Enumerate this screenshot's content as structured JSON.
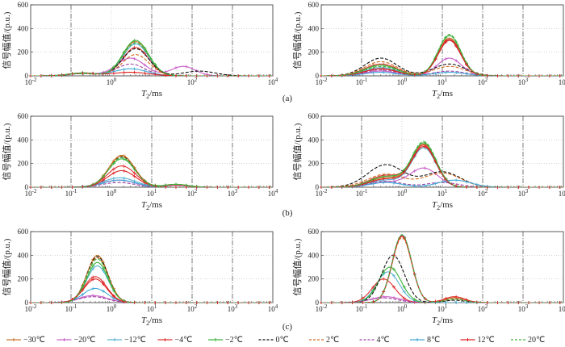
{
  "figure": {
    "rows": [
      {
        "label": "(a)"
      },
      {
        "label": "(b)"
      },
      {
        "label": "(c)"
      }
    ]
  },
  "legend": [
    {
      "name": "−30℃",
      "color": "#c8782d",
      "marker": "+"
    },
    {
      "name": "−20℃",
      "color": "#c860c8",
      "marker": "+"
    },
    {
      "name": "−12℃",
      "color": "#5ab4d2",
      "marker": "+"
    },
    {
      "name": "−4℃",
      "color": "#e03030",
      "marker": "+"
    },
    {
      "name": "−2℃",
      "color": "#3cb43c",
      "marker": "+"
    },
    {
      "name": "0℃",
      "color": "#111111",
      "marker": "dash"
    },
    {
      "name": "2℃",
      "color": "#d2691e",
      "marker": "dash"
    },
    {
      "name": "4℃",
      "color": "#a040a0",
      "marker": "dash"
    },
    {
      "name": "8℃",
      "color": "#40a8d8",
      "marker": "+"
    },
    {
      "name": "12℃",
      "color": "#e02020",
      "marker": "+"
    },
    {
      "name": "20℃",
      "color": "#40b040",
      "marker": "dash"
    }
  ],
  "chart_data": [
    {
      "type": "line",
      "id": "a-left",
      "xlabel": "T2/ms",
      "ylabel": "信号幅值/(p.u.)",
      "xscale": "log",
      "xlim": [
        0.01,
        10000
      ],
      "ylim": [
        0,
        600
      ],
      "xticks": [
        "10-2",
        "100",
        "102",
        "104"
      ],
      "yticks": [
        0,
        200,
        400,
        600
      ],
      "series": [
        {
          "name": "−30℃",
          "peaks": [
            [
              0.2,
              25,
              0.35
            ],
            [
              4.0,
              290,
              0.32
            ]
          ]
        },
        {
          "name": "−20℃",
          "peaks": [
            [
              0.2,
              20,
              0.35
            ],
            [
              3.0,
              150,
              0.35
            ],
            [
              60,
              80,
              0.3
            ]
          ]
        },
        {
          "name": "−12℃",
          "peaks": [
            [
              0.2,
              25,
              0.35
            ],
            [
              4.0,
              270,
              0.32
            ]
          ]
        },
        {
          "name": "−4℃",
          "peaks": [
            [
              0.2,
              25,
              0.35
            ],
            [
              4.0,
              240,
              0.32
            ]
          ]
        },
        {
          "name": "−2℃",
          "peaks": [
            [
              0.2,
              25,
              0.35
            ],
            [
              4.0,
              300,
              0.32
            ]
          ]
        },
        {
          "name": "0℃",
          "peaks": [
            [
              0.2,
              20,
              0.35
            ],
            [
              4.0,
              230,
              0.33
            ],
            [
              150,
              40,
              0.4
            ]
          ]
        },
        {
          "name": "2℃",
          "peaks": [
            [
              0.2,
              20,
              0.35
            ],
            [
              4.0,
              180,
              0.33
            ]
          ]
        },
        {
          "name": "4℃",
          "peaks": [
            [
              0.2,
              20,
              0.35
            ],
            [
              3.0,
              100,
              0.35
            ]
          ]
        },
        {
          "name": "8℃",
          "peaks": [
            [
              0.2,
              20,
              0.35
            ],
            [
              3.0,
              60,
              0.4
            ]
          ]
        },
        {
          "name": "12℃",
          "peaks": [
            [
              0.2,
              20,
              0.35
            ],
            [
              3.0,
              30,
              0.45
            ]
          ]
        },
        {
          "name": "20℃",
          "peaks": [
            [
              0.2,
              20,
              0.35
            ],
            [
              4.0,
              280,
              0.32
            ]
          ]
        }
      ]
    },
    {
      "type": "line",
      "id": "a-right",
      "xlabel": "T2/ms",
      "ylabel": "信号幅值/(p.u.)",
      "xscale": "log",
      "xlim": [
        0.01,
        10000
      ],
      "ylim": [
        0,
        600
      ],
      "xticks": [
        "10-2",
        "10-1",
        "100",
        "101",
        "102",
        "103",
        "104"
      ],
      "yticks": [
        0,
        200,
        400,
        600
      ],
      "series": [
        {
          "name": "−30℃",
          "peaks": [
            [
              0.3,
              60,
              0.4
            ],
            [
              15,
              320,
              0.28
            ]
          ]
        },
        {
          "name": "−20℃",
          "peaks": [
            [
              0.3,
              40,
              0.4
            ],
            [
              15,
              150,
              0.3
            ]
          ]
        },
        {
          "name": "−12℃",
          "peaks": [
            [
              0.3,
              70,
              0.4
            ],
            [
              15,
              300,
              0.28
            ]
          ]
        },
        {
          "name": "−4℃",
          "peaks": [
            [
              0.3,
              100,
              0.4
            ],
            [
              15,
              310,
              0.28
            ]
          ]
        },
        {
          "name": "−2℃",
          "peaks": [
            [
              0.3,
              90,
              0.4
            ],
            [
              15,
              340,
              0.28
            ]
          ]
        },
        {
          "name": "0℃",
          "peaks": [
            [
              0.3,
              150,
              0.4
            ],
            [
              15,
              100,
              0.4
            ]
          ]
        },
        {
          "name": "2℃",
          "peaks": [
            [
              0.3,
              120,
              0.4
            ],
            [
              15,
              80,
              0.4
            ]
          ]
        },
        {
          "name": "4℃",
          "peaks": [
            [
              0.3,
              50,
              0.4
            ],
            [
              15,
              40,
              0.4
            ]
          ]
        },
        {
          "name": "8℃",
          "peaks": [
            [
              0.3,
              30,
              0.4
            ],
            [
              15,
              30,
              0.4
            ]
          ]
        },
        {
          "name": "12℃",
          "peaks": [
            [
              0.3,
              60,
              0.4
            ],
            [
              15,
              300,
              0.28
            ]
          ]
        },
        {
          "name": "20℃",
          "peaks": [
            [
              0.3,
              80,
              0.4
            ],
            [
              15,
              350,
              0.28
            ]
          ]
        }
      ]
    },
    {
      "type": "line",
      "id": "b-left",
      "xlabel": "T2/ms",
      "ylabel": "信号幅值/(p.u.)",
      "xscale": "log",
      "xlim": [
        0.01,
        10000
      ],
      "ylim": [
        0,
        600
      ],
      "xticks": [
        "10-2",
        "10-1",
        "100",
        "101",
        "102",
        "103",
        "104"
      ],
      "yticks": [
        0,
        200,
        400,
        600
      ],
      "series": [
        {
          "name": "−30℃",
          "peaks": [
            [
              1.8,
              270,
              0.32
            ],
            [
              40,
              20,
              0.3
            ]
          ]
        },
        {
          "name": "−20℃",
          "peaks": [
            [
              1.5,
              60,
              0.4
            ],
            [
              40,
              15,
              0.3
            ]
          ]
        },
        {
          "name": "−12℃",
          "peaks": [
            [
              1.6,
              80,
              0.4
            ],
            [
              40,
              20,
              0.3
            ]
          ]
        },
        {
          "name": "−4℃",
          "peaks": [
            [
              1.8,
              180,
              0.35
            ],
            [
              40,
              20,
              0.3
            ]
          ]
        },
        {
          "name": "−2℃",
          "peaks": [
            [
              1.8,
              240,
              0.33
            ],
            [
              40,
              25,
              0.3
            ]
          ]
        },
        {
          "name": "0℃",
          "peaks": [
            [
              1.8,
              260,
              0.32
            ]
          ]
        },
        {
          "name": "2℃",
          "peaks": [
            [
              1.8,
              265,
              0.32
            ]
          ]
        },
        {
          "name": "4℃",
          "peaks": [
            [
              1.5,
              40,
              0.4
            ]
          ]
        },
        {
          "name": "8℃",
          "peaks": [
            [
              1.6,
              60,
              0.4
            ]
          ]
        },
        {
          "name": "12℃",
          "peaks": [
            [
              1.8,
              140,
              0.35
            ]
          ]
        },
        {
          "name": "20℃",
          "peaks": [
            [
              1.8,
              250,
              0.32
            ]
          ]
        }
      ]
    },
    {
      "type": "line",
      "id": "b-right",
      "xlabel": "T2/ms",
      "ylabel": "信号幅值/(p.u.)",
      "xscale": "log",
      "xlim": [
        0.01,
        10000
      ],
      "ylim": [
        0,
        600
      ],
      "xticks": [
        "10-2",
        "10-1",
        "100",
        "101",
        "102",
        "103",
        "104"
      ],
      "yticks": [
        0,
        200,
        400,
        600
      ],
      "series": [
        {
          "name": "−30℃",
          "peaks": [
            [
              0.4,
              80,
              0.4
            ],
            [
              3.5,
              360,
              0.3
            ]
          ]
        },
        {
          "name": "−20℃",
          "peaks": [
            [
              0.4,
              40,
              0.4
            ],
            [
              3.5,
              160,
              0.35
            ]
          ]
        },
        {
          "name": "−12℃",
          "peaks": [
            [
              0.4,
              60,
              0.4
            ],
            [
              3.5,
              330,
              0.3
            ]
          ]
        },
        {
          "name": "−4℃",
          "peaks": [
            [
              0.4,
              100,
              0.4
            ],
            [
              3.5,
              350,
              0.3
            ]
          ]
        },
        {
          "name": "−2℃",
          "peaks": [
            [
              0.4,
              90,
              0.4
            ],
            [
              3.5,
              370,
              0.3
            ]
          ]
        },
        {
          "name": "0℃",
          "peaks": [
            [
              0.4,
              190,
              0.45
            ],
            [
              10,
              130,
              0.45
            ]
          ]
        },
        {
          "name": "2℃",
          "peaks": [
            [
              0.4,
              110,
              0.45
            ],
            [
              10,
              120,
              0.45
            ]
          ]
        },
        {
          "name": "4℃",
          "peaks": [
            [
              0.4,
              50,
              0.4
            ],
            [
              10,
              40,
              0.4
            ]
          ]
        },
        {
          "name": "8℃",
          "peaks": [
            [
              0.4,
              40,
              0.4
            ],
            [
              20,
              60,
              0.4
            ]
          ]
        },
        {
          "name": "12℃",
          "peaks": [
            [
              0.4,
              70,
              0.4
            ],
            [
              3.5,
              340,
              0.3
            ]
          ]
        },
        {
          "name": "20℃",
          "peaks": [
            [
              0.4,
              90,
              0.4
            ],
            [
              3.5,
              380,
              0.3
            ]
          ]
        }
      ]
    },
    {
      "type": "line",
      "id": "c-left",
      "xlabel": "T2/ms",
      "ylabel": "信号幅值/(p.u.)",
      "xscale": "log",
      "xlim": [
        0.01,
        10000
      ],
      "ylim": [
        0,
        600
      ],
      "xticks": [
        "10-2",
        "10-1",
        "100",
        "101",
        "102",
        "103",
        "104"
      ],
      "yticks": [
        0,
        200,
        400,
        600
      ],
      "series": [
        {
          "name": "−30℃",
          "peaks": [
            [
              0.45,
              400,
              0.26
            ]
          ]
        },
        {
          "name": "−20℃",
          "peaks": [
            [
              0.35,
              60,
              0.35
            ]
          ]
        },
        {
          "name": "−12℃",
          "peaks": [
            [
              0.45,
              310,
              0.27
            ]
          ]
        },
        {
          "name": "−4℃",
          "peaks": [
            [
              0.4,
              220,
              0.28
            ]
          ]
        },
        {
          "name": "−2℃",
          "peaks": [
            [
              0.45,
              340,
              0.26
            ]
          ]
        },
        {
          "name": "0℃",
          "peaks": [
            [
              0.45,
              390,
              0.26
            ]
          ]
        },
        {
          "name": "2℃",
          "peaks": [
            [
              0.45,
              380,
              0.26
            ]
          ]
        },
        {
          "name": "4℃",
          "peaks": [
            [
              0.35,
              50,
              0.35
            ]
          ]
        },
        {
          "name": "8℃",
          "peaks": [
            [
              0.4,
              120,
              0.3
            ]
          ]
        },
        {
          "name": "12℃",
          "peaks": [
            [
              0.4,
              200,
              0.28
            ]
          ]
        },
        {
          "name": "20℃",
          "peaks": [
            [
              0.45,
              370,
              0.26
            ]
          ]
        }
      ]
    },
    {
      "type": "line",
      "id": "c-right",
      "xlabel": "T2/ms",
      "ylabel": "信号幅值/(p.u.)",
      "xscale": "log",
      "xlim": [
        0.01,
        10000
      ],
      "ylim": [
        0,
        600
      ],
      "xticks": [
        "10-2",
        "10-1",
        "100",
        "101",
        "102",
        "103",
        "104"
      ],
      "yticks": [
        0,
        200,
        400,
        600
      ],
      "series": [
        {
          "name": "−30℃",
          "peaks": [
            [
              1.0,
              560,
              0.24
            ],
            [
              20,
              40,
              0.25
            ]
          ]
        },
        {
          "name": "−20℃",
          "peaks": [
            [
              0.4,
              50,
              0.35
            ]
          ]
        },
        {
          "name": "−12℃",
          "peaks": [
            [
              0.45,
              260,
              0.28
            ]
          ]
        },
        {
          "name": "−4℃",
          "peaks": [
            [
              0.35,
              200,
              0.28
            ]
          ]
        },
        {
          "name": "−2℃",
          "peaks": [
            [
              0.5,
              300,
              0.28
            ]
          ]
        },
        {
          "name": "0℃",
          "peaks": [
            [
              0.6,
              400,
              0.28
            ],
            [
              20,
              20,
              0.25
            ]
          ]
        },
        {
          "name": "2℃",
          "peaks": [
            [
              1.0,
              550,
              0.24
            ],
            [
              20,
              30,
              0.25
            ]
          ]
        },
        {
          "name": "4℃",
          "peaks": [
            [
              0.35,
              40,
              0.35
            ]
          ]
        },
        {
          "name": "8℃",
          "peaks": [
            [
              1.0,
              570,
              0.24
            ]
          ]
        },
        {
          "name": "12℃",
          "peaks": [
            [
              1.0,
              565,
              0.24
            ],
            [
              20,
              50,
              0.25
            ]
          ]
        },
        {
          "name": "20℃",
          "peaks": [
            [
              1.0,
              575,
              0.24
            ],
            [
              20,
              30,
              0.25
            ]
          ]
        }
      ]
    }
  ]
}
